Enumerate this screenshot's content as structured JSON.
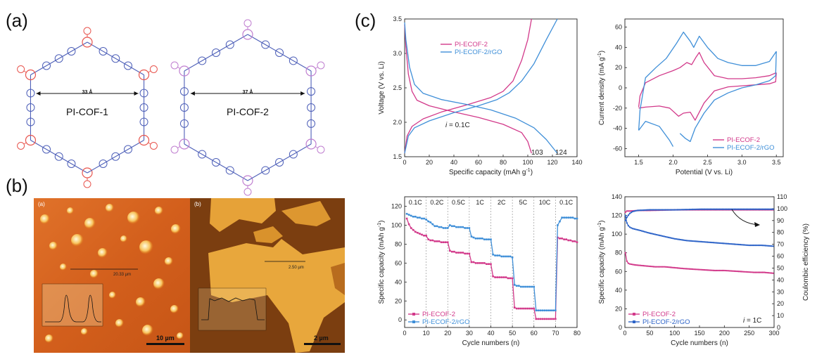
{
  "panels": {
    "a": "(a)",
    "b": "(b)",
    "c": "(c)"
  },
  "molecules": {
    "cof1": {
      "name": "PI-COF-1",
      "pore": "33 Å",
      "color": "#e8564f"
    },
    "cof2": {
      "name": "PI-COF-2",
      "pore": "37 Å",
      "color": "#c07fd0"
    },
    "core_color": "#4d5fb8"
  },
  "afm": {
    "left": {
      "label": "(a)",
      "measure": "20.33 µm",
      "scale": "10 µm"
    },
    "right": {
      "label": "(b)",
      "measure": "2.50 µm",
      "scale": "2 µm"
    }
  },
  "colors": {
    "ecof": "#d2398a",
    "rgo": "#3f8fd8",
    "rgo_c": "#2e64c8"
  },
  "chart_data": [
    {
      "id": "gcd",
      "type": "line",
      "xlabel": "Specific capacity (mAh g",
      "ylabel": "Voltage (V vs. Li)",
      "xlim": [
        0,
        140
      ],
      "ylim": [
        1.5,
        3.5
      ],
      "xticks": [
        "0",
        "20",
        "40",
        "60",
        "80",
        "100",
        "120",
        "140"
      ],
      "yticks": [
        "1.5",
        "2.0",
        "2.5",
        "3.0",
        "3.5"
      ],
      "legend": [
        "PI-ECOF-2",
        "PI-ECOF-2/rGO"
      ],
      "annotations": {
        "rate": "= 0.1C",
        "rate_i": "i",
        "cap1": "103",
        "cap2": "124"
      },
      "series": [
        {
          "name": "PI-ECOF-2",
          "color": "ecof",
          "curves": [
            [
              [
                0,
                3.42
              ],
              [
                1,
                3.1
              ],
              [
                3,
                2.7
              ],
              [
                6,
                2.45
              ],
              [
                10,
                2.32
              ],
              [
                20,
                2.24
              ],
              [
                40,
                2.15
              ],
              [
                60,
                2.07
              ],
              [
                80,
                1.97
              ],
              [
                95,
                1.85
              ],
              [
                100,
                1.72
              ],
              [
                103,
                1.55
              ]
            ],
            [
              [
                0,
                1.55
              ],
              [
                2,
                1.8
              ],
              [
                6,
                1.94
              ],
              [
                15,
                2.05
              ],
              [
                30,
                2.15
              ],
              [
                50,
                2.25
              ],
              [
                70,
                2.36
              ],
              [
                80,
                2.45
              ],
              [
                88,
                2.6
              ],
              [
                95,
                2.9
              ],
              [
                100,
                3.2
              ],
              [
                103,
                3.5
              ]
            ]
          ]
        },
        {
          "name": "PI-ECOF-2/rGO",
          "color": "rgo",
          "curves": [
            [
              [
                0,
                3.45
              ],
              [
                1,
                3.2
              ],
              [
                4,
                2.8
              ],
              [
                8,
                2.55
              ],
              [
                15,
                2.42
              ],
              [
                30,
                2.33
              ],
              [
                50,
                2.26
              ],
              [
                70,
                2.18
              ],
              [
                90,
                2.06
              ],
              [
                105,
                1.92
              ],
              [
                115,
                1.75
              ],
              [
                124,
                1.55
              ]
            ],
            [
              [
                0,
                1.55
              ],
              [
                3,
                1.8
              ],
              [
                8,
                1.92
              ],
              [
                20,
                2.02
              ],
              [
                40,
                2.14
              ],
              [
                60,
                2.24
              ],
              [
                75,
                2.33
              ],
              [
                85,
                2.43
              ],
              [
                95,
                2.6
              ],
              [
                105,
                2.85
              ],
              [
                115,
                3.2
              ],
              [
                124,
                3.5
              ]
            ]
          ]
        }
      ]
    },
    {
      "id": "cv",
      "type": "line",
      "xlabel": "Potential (V vs. Li)",
      "ylabel": "Current density (mA g",
      "xlim": [
        1.3,
        3.6
      ],
      "ylim": [
        -68,
        68
      ],
      "xticks": [
        {
          "v": 1.5,
          "t": "1.5"
        },
        {
          "v": 2.0,
          "t": "2.0"
        },
        {
          "v": 2.5,
          "t": "2.5"
        },
        {
          "v": 3.0,
          "t": "3.0"
        },
        {
          "v": 3.5,
          "t": "3.5"
        }
      ],
      "yticks": [
        "60",
        "40",
        "20",
        "0",
        "-20",
        "-40",
        "-60"
      ],
      "legend": [
        "PI-ECOF-2",
        "PI-ECOF-2/rGO"
      ],
      "series": [
        {
          "name": "PI-ECOF-2",
          "color": "ecof",
          "curves": [
            [
              [
                1.5,
                -19
              ],
              [
                1.52,
                -8
              ],
              [
                1.6,
                5
              ],
              [
                1.8,
                12
              ],
              [
                2.0,
                17
              ],
              [
                2.1,
                20
              ],
              [
                2.2,
                25
              ],
              [
                2.27,
                23
              ],
              [
                2.33,
                30
              ],
              [
                2.38,
                35
              ],
              [
                2.45,
                25
              ],
              [
                2.6,
                12
              ],
              [
                2.8,
                9
              ],
              [
                3.0,
                9
              ],
              [
                3.2,
                10
              ],
              [
                3.4,
                12
              ],
              [
                3.5,
                15
              ]
            ],
            [
              [
                3.5,
                15
              ],
              [
                3.49,
                6
              ],
              [
                3.4,
                4
              ],
              [
                3.2,
                3
              ],
              [
                3.0,
                2
              ],
              [
                2.8,
                1
              ],
              [
                2.6,
                -3
              ],
              [
                2.45,
                -15
              ],
              [
                2.32,
                -32
              ],
              [
                2.25,
                -24
              ],
              [
                2.15,
                -25
              ],
              [
                2.08,
                -28
              ],
              [
                1.95,
                -20
              ],
              [
                1.8,
                -18
              ],
              [
                1.6,
                -19
              ],
              [
                1.5,
                -20
              ]
            ]
          ]
        },
        {
          "name": "PI-ECOF-2/rGO",
          "color": "rgo",
          "curves": [
            [
              [
                1.5,
                -42
              ],
              [
                1.52,
                -22
              ],
              [
                1.6,
                10
              ],
              [
                1.75,
                20
              ],
              [
                1.9,
                29
              ],
              [
                2.05,
                44
              ],
              [
                2.15,
                55
              ],
              [
                2.25,
                46
              ],
              [
                2.3,
                40
              ],
              [
                2.38,
                51
              ],
              [
                2.5,
                40
              ],
              [
                2.65,
                29
              ],
              [
                2.8,
                25
              ],
              [
                3.0,
                22
              ],
              [
                3.2,
                22
              ],
              [
                3.4,
                26
              ],
              [
                3.5,
                36
              ]
            ],
            [
              [
                3.5,
                36
              ],
              [
                3.49,
                12
              ],
              [
                3.4,
                7
              ],
              [
                3.2,
                3
              ],
              [
                3.0,
                0
              ],
              [
                2.8,
                -5
              ],
              [
                2.6,
                -12
              ],
              [
                2.45,
                -25
              ],
              [
                2.32,
                -40
              ],
              [
                2.25,
                -53
              ],
              [
                2.18,
                -50
              ],
              [
                2.1,
                -45
              ]
            ],
            [
              [
                1.5,
                -42
              ],
              [
                1.6,
                -33
              ],
              [
                1.8,
                -38
              ],
              [
                1.95,
                -52
              ],
              [
                2.0,
                -58
              ]
            ]
          ]
        }
      ]
    },
    {
      "id": "rate",
      "type": "line",
      "xlabel": "Cycle numbers (n)",
      "ylabel": "Specific capacity (mAh g",
      "xlim": [
        0,
        80
      ],
      "ylim": [
        -8,
        130
      ],
      "xticks": [
        "0",
        "10",
        "20",
        "30",
        "40",
        "50",
        "60",
        "70",
        "80"
      ],
      "yticks": [
        "0",
        "20",
        "40",
        "60",
        "80",
        "100",
        "120"
      ],
      "rates": [
        "0.1C",
        "0.2C",
        "0.5C",
        "1C",
        "2C",
        "5C",
        "10C",
        "0.1C"
      ],
      "legend": [
        "PI-ECOF-2",
        "PI-ECOF-2/rGO"
      ],
      "series": [
        {
          "name": "PI-ECOF-2",
          "color": "ecof",
          "values": [
            107,
            101,
            97,
            95,
            93,
            92,
            91,
            90,
            89,
            89,
            85,
            84,
            84,
            83,
            83,
            83,
            82,
            82,
            82,
            82,
            73,
            72,
            72,
            71,
            71,
            71,
            71,
            70,
            70,
            70,
            61,
            61,
            60,
            60,
            60,
            60,
            60,
            59,
            59,
            59,
            46,
            45,
            45,
            45,
            45,
            45,
            45,
            44,
            44,
            44,
            13,
            12,
            12,
            12,
            12,
            12,
            12,
            12,
            12,
            12,
            1,
            1,
            1,
            1,
            1,
            1,
            1,
            1,
            1,
            1,
            87,
            86,
            86,
            85,
            85,
            84,
            84,
            83,
            83,
            82
          ]
        },
        {
          "name": "PI-ECOF-2/rGO",
          "color": "rgo",
          "values": [
            112,
            111,
            110,
            109,
            109,
            108,
            108,
            107,
            107,
            106,
            104,
            103,
            101,
            99,
            99,
            98,
            98,
            97,
            97,
            97,
            100,
            99,
            99,
            98,
            98,
            98,
            98,
            97,
            97,
            97,
            88,
            87,
            86,
            86,
            86,
            86,
            85,
            85,
            85,
            85,
            69,
            68,
            68,
            68,
            67,
            67,
            67,
            67,
            67,
            66,
            37,
            36,
            36,
            35,
            35,
            35,
            35,
            35,
            35,
            35,
            10,
            10,
            10,
            10,
            10,
            10,
            10,
            10,
            10,
            10,
            100,
            104,
            108,
            108,
            108,
            108,
            108,
            108,
            107,
            107
          ]
        }
      ]
    },
    {
      "id": "cycle",
      "type": "scatter",
      "xlabel": "Cycle numbers (n)",
      "ylabel": "Specific capacity (mAh g",
      "ylabel2": "Coulombic efficiency (%)",
      "xlim": [
        0,
        300
      ],
      "ylim": [
        0,
        140
      ],
      "y2lim": [
        0,
        110
      ],
      "xticks": [
        "0",
        "50",
        "100",
        "150",
        "200",
        "250",
        "300"
      ],
      "yticks": [
        "0",
        "20",
        "40",
        "60",
        "80",
        "100",
        "120",
        "140"
      ],
      "y2ticks": [
        "0",
        "10",
        "20",
        "30",
        "40",
        "50",
        "60",
        "70",
        "80",
        "90",
        "100",
        "110"
      ],
      "legend": [
        "PI-ECOF-2",
        "PI-ECOF-2/rGO"
      ],
      "annotation": {
        "i": "i",
        "text": "= 1C"
      },
      "series": [
        {
          "name": "PI-ECOF-2 capacity",
          "color": "ecof",
          "axis": "left",
          "points": [
            [
              1,
              80
            ],
            [
              3,
              72
            ],
            [
              6,
              69
            ],
            [
              10,
              68
            ],
            [
              20,
              67
            ],
            [
              40,
              66
            ],
            [
              60,
              65
            ],
            [
              80,
              65
            ],
            [
              100,
              64
            ],
            [
              120,
              63
            ],
            [
              150,
              62
            ],
            [
              180,
              61
            ],
            [
              200,
              61
            ],
            [
              230,
              60
            ],
            [
              260,
              59
            ],
            [
              280,
              59
            ],
            [
              300,
              58
            ]
          ]
        },
        {
          "name": "PI-ECOF-2/rGO capacity",
          "color": "rgo_c",
          "axis": "left",
          "points": [
            [
              1,
              120
            ],
            [
              3,
              113
            ],
            [
              8,
              108
            ],
            [
              15,
              106
            ],
            [
              30,
              104
            ],
            [
              50,
              101
            ],
            [
              75,
              98
            ],
            [
              100,
              95
            ],
            [
              125,
              93
            ],
            [
              150,
              92
            ],
            [
              175,
              91
            ],
            [
              200,
              90
            ],
            [
              225,
              89
            ],
            [
              250,
              88
            ],
            [
              275,
              88
            ],
            [
              300,
              87
            ]
          ]
        },
        {
          "name": "PI-ECOF-2 CE",
          "color": "ecof",
          "axis": "right",
          "points": [
            [
              1,
              97
            ],
            [
              3,
              98
            ],
            [
              10,
              98
            ],
            [
              30,
              98.5
            ],
            [
              50,
              98.5
            ],
            [
              100,
              99
            ],
            [
              150,
              99
            ],
            [
              200,
              99
            ],
            [
              250,
              99
            ],
            [
              300,
              99
            ]
          ]
        },
        {
          "name": "PI-ECOF-2/rGO CE",
          "color": "rgo_c",
          "axis": "right",
          "points": [
            [
              1,
              90
            ],
            [
              3,
              92
            ],
            [
              6,
              94
            ],
            [
              10,
              96
            ],
            [
              15,
              97.5
            ],
            [
              25,
              98.5
            ],
            [
              50,
              99
            ],
            [
              100,
              99
            ],
            [
              150,
              99.5
            ],
            [
              200,
              99.5
            ],
            [
              250,
              99.5
            ],
            [
              300,
              99.5
            ]
          ]
        }
      ]
    }
  ]
}
